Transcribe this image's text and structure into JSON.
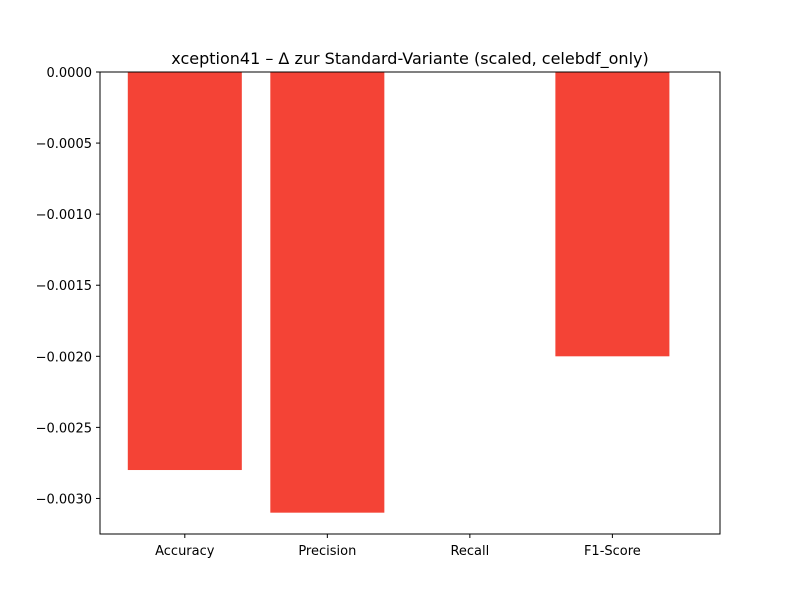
{
  "chart_data": {
    "type": "bar",
    "title": "xception41 – Δ zur Standard-Variante (scaled, celebdf_only)",
    "xlabel": "",
    "ylabel": "",
    "categories": [
      "Accuracy",
      "Precision",
      "Recall",
      "F1-Score"
    ],
    "values": [
      -0.0028,
      -0.0031,
      0.0,
      -0.002
    ],
    "ylim": [
      -0.00325,
      0.0
    ],
    "yticks": [
      0.0,
      -0.0005,
      -0.001,
      -0.0015,
      -0.002,
      -0.0025,
      -0.003
    ],
    "ytick_labels": [
      "0.0000",
      "−0.0005",
      "−0.0010",
      "−0.0015",
      "−0.0020",
      "−0.0025",
      "−0.0030"
    ],
    "bar_color": "#f44336",
    "grid": false,
    "legend": "none"
  }
}
